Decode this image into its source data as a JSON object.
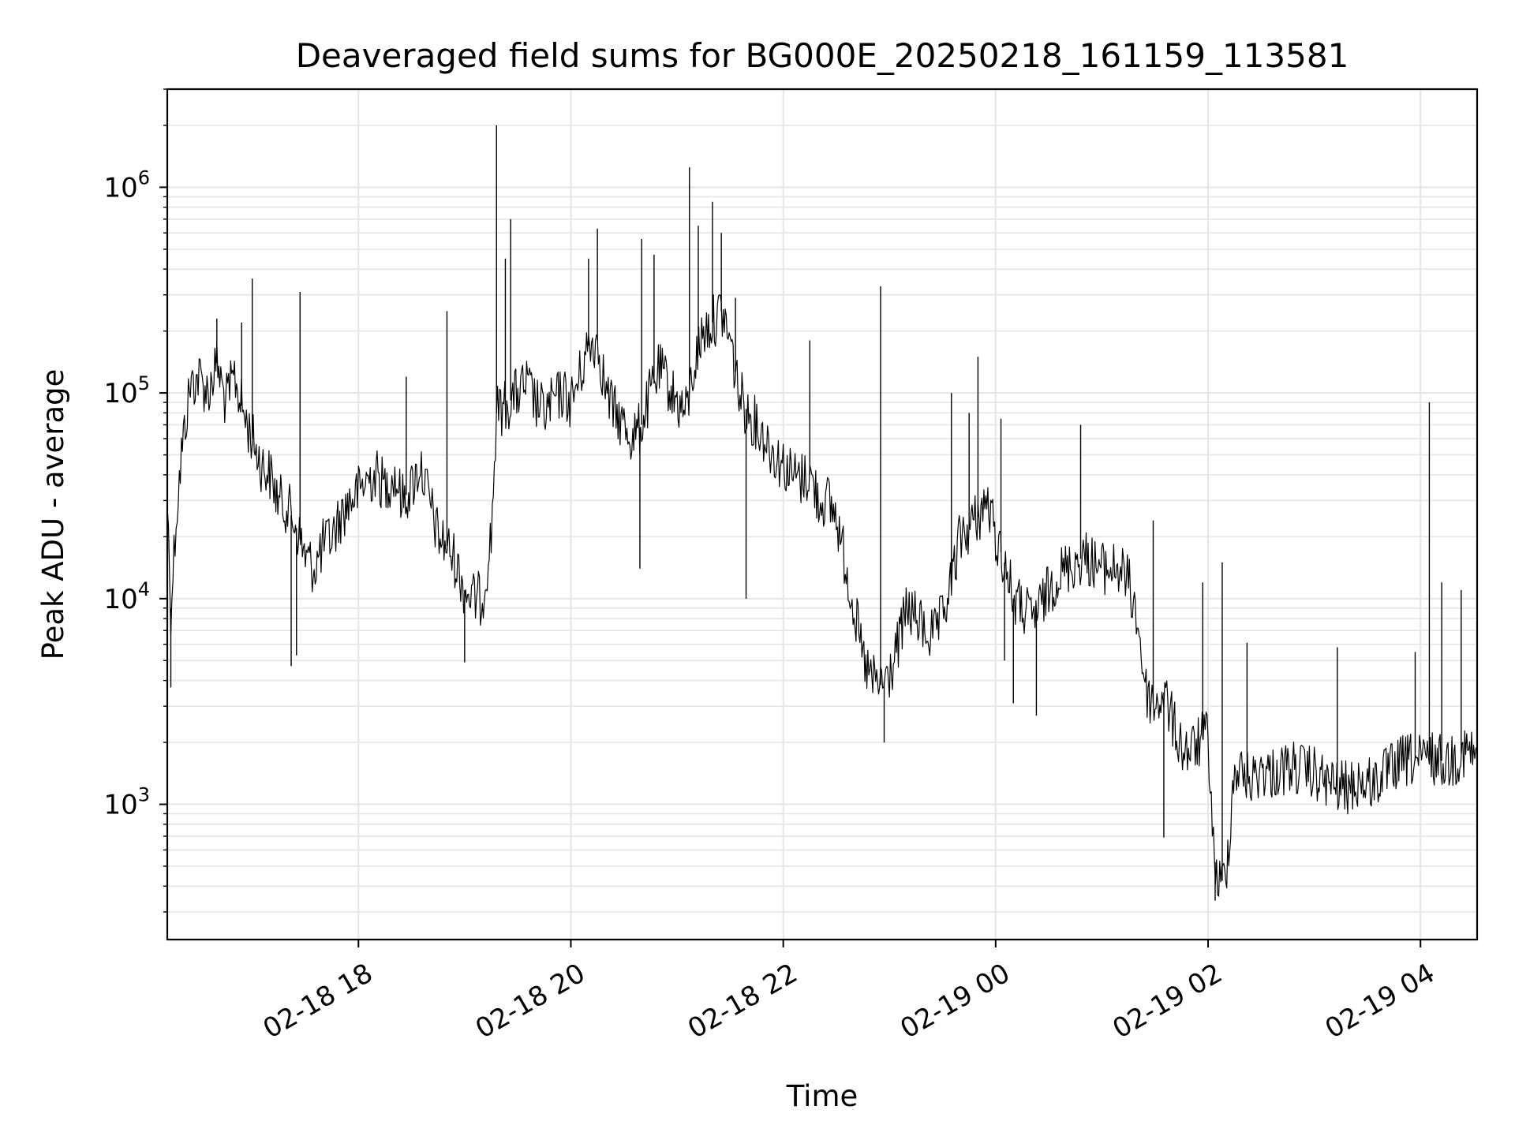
{
  "chart_data": {
    "type": "line",
    "title": "Deaveraged field sums for BG000E_20250218_161159_113581",
    "xlabel": "Time",
    "ylabel": "Peak ADU - average",
    "yscale": "log",
    "ylim": [
      220,
      3000000
    ],
    "xlim": [
      "02-18 16:12",
      "02-19 04:32"
    ],
    "grid": true,
    "grid_color": "#e5e5e5",
    "line_color": "#000000",
    "x_ticks": [
      {
        "t": "02-18 18:00",
        "label": "02-18 18"
      },
      {
        "t": "02-18 20:00",
        "label": "02-18 20"
      },
      {
        "t": "02-18 22:00",
        "label": "02-18 22"
      },
      {
        "t": "02-19 00:00",
        "label": "02-19 00"
      },
      {
        "t": "02-19 02:00",
        "label": "02-19 02"
      },
      {
        "t": "02-19 04:00",
        "label": "02-19 04"
      }
    ],
    "y_ticks": [
      {
        "v": 1000,
        "base": "10",
        "exp": "3"
      },
      {
        "v": 10000,
        "base": "10",
        "exp": "4"
      },
      {
        "v": 100000,
        "base": "10",
        "exp": "5"
      },
      {
        "v": 1000000,
        "base": "10",
        "exp": "6"
      }
    ],
    "series": [
      {
        "points": [
          [
            "02-18 16:12",
            30000
          ],
          [
            "02-18 16:14",
            9000
          ],
          [
            "02-18 16:17",
            25000
          ],
          [
            "02-18 16:20",
            50000
          ],
          [
            "02-18 16:25",
            110000
          ],
          [
            "02-18 16:30",
            120000
          ],
          [
            "02-18 16:35",
            100000
          ],
          [
            "02-18 16:40",
            140000
          ],
          [
            "02-18 16:45",
            90000
          ],
          [
            "02-18 16:50",
            120000
          ],
          [
            "02-18 16:55",
            80000
          ],
          [
            "02-18 17:00",
            60000
          ],
          [
            "02-18 17:05",
            45000
          ],
          [
            "02-18 17:10",
            40000
          ],
          [
            "02-18 17:15",
            30000
          ],
          [
            "02-18 17:20",
            28000
          ],
          [
            "02-18 17:25",
            22000
          ],
          [
            "02-18 17:30",
            16000
          ],
          [
            "02-18 17:35",
            14000
          ],
          [
            "02-18 17:40",
            18000
          ],
          [
            "02-18 17:45",
            20000
          ],
          [
            "02-18 17:50",
            25000
          ],
          [
            "02-18 17:55",
            30000
          ],
          [
            "02-18 18:00",
            33000
          ],
          [
            "02-18 18:05",
            38000
          ],
          [
            "02-18 18:10",
            40000
          ],
          [
            "02-18 18:15",
            35000
          ],
          [
            "02-18 18:20",
            40000
          ],
          [
            "02-18 18:25",
            30000
          ],
          [
            "02-18 18:30",
            35000
          ],
          [
            "02-18 18:35",
            45000
          ],
          [
            "02-18 18:40",
            30000
          ],
          [
            "02-18 18:45",
            20000
          ],
          [
            "02-18 18:50",
            18000
          ],
          [
            "02-18 18:55",
            15000
          ],
          [
            "02-18 19:00",
            11000
          ],
          [
            "02-18 19:05",
            10000
          ],
          [
            "02-18 19:10",
            10000
          ],
          [
            "02-18 19:15",
            20000
          ],
          [
            "02-18 19:18",
            80000
          ],
          [
            "02-18 19:25",
            90000
          ],
          [
            "02-18 19:30",
            100000
          ],
          [
            "02-18 19:35",
            110000
          ],
          [
            "02-18 19:40",
            90000
          ],
          [
            "02-18 19:45",
            80000
          ],
          [
            "02-18 19:50",
            90000
          ],
          [
            "02-18 19:55",
            100000
          ],
          [
            "02-18 20:00",
            90000
          ],
          [
            "02-18 20:05",
            120000
          ],
          [
            "02-18 20:10",
            170000
          ],
          [
            "02-18 20:15",
            180000
          ],
          [
            "02-18 20:20",
            100000
          ],
          [
            "02-18 20:25",
            80000
          ],
          [
            "02-18 20:30",
            70000
          ],
          [
            "02-18 20:35",
            60000
          ],
          [
            "02-18 20:40",
            70000
          ],
          [
            "02-18 20:45",
            100000
          ],
          [
            "02-18 20:50",
            130000
          ],
          [
            "02-18 20:55",
            110000
          ],
          [
            "02-18 21:00",
            90000
          ],
          [
            "02-18 21:05",
            80000
          ],
          [
            "02-18 21:10",
            140000
          ],
          [
            "02-18 21:15",
            200000
          ],
          [
            "02-18 21:20",
            220000
          ],
          [
            "02-18 21:25",
            250000
          ],
          [
            "02-18 21:30",
            180000
          ],
          [
            "02-18 21:35",
            100000
          ],
          [
            "02-18 21:40",
            80000
          ],
          [
            "02-18 21:45",
            70000
          ],
          [
            "02-18 21:50",
            60000
          ],
          [
            "02-18 21:55",
            50000
          ],
          [
            "02-18 22:00",
            45000
          ],
          [
            "02-18 22:05",
            40000
          ],
          [
            "02-18 22:10",
            38000
          ],
          [
            "02-18 22:15",
            40000
          ],
          [
            "02-18 22:20",
            30000
          ],
          [
            "02-18 22:25",
            30000
          ],
          [
            "02-18 22:30",
            25000
          ],
          [
            "02-18 22:35",
            15000
          ],
          [
            "02-18 22:40",
            9000
          ],
          [
            "02-18 22:45",
            5000
          ],
          [
            "02-18 22:50",
            4000
          ],
          [
            "02-18 22:55",
            3800
          ],
          [
            "02-18 23:00",
            4200
          ],
          [
            "02-18 23:05",
            6000
          ],
          [
            "02-18 23:10",
            9000
          ],
          [
            "02-18 23:15",
            8000
          ],
          [
            "02-18 23:20",
            7000
          ],
          [
            "02-18 23:25",
            6500
          ],
          [
            "02-18 23:30",
            8000
          ],
          [
            "02-18 23:35",
            12000
          ],
          [
            "02-18 23:40",
            20000
          ],
          [
            "02-18 23:45",
            22000
          ],
          [
            "02-18 23:50",
            25000
          ],
          [
            "02-18 23:55",
            30000
          ],
          [
            "02-19 00:00",
            20000
          ],
          [
            "02-19 00:05",
            15000
          ],
          [
            "02-19 00:10",
            10000
          ],
          [
            "02-19 00:15",
            9000
          ],
          [
            "02-19 00:20",
            8000
          ],
          [
            "02-19 00:25",
            9000
          ],
          [
            "02-19 00:30",
            11000
          ],
          [
            "02-19 00:35",
            13000
          ],
          [
            "02-19 00:40",
            14000
          ],
          [
            "02-19 00:45",
            15000
          ],
          [
            "02-19 00:50",
            16000
          ],
          [
            "02-19 00:55",
            15000
          ],
          [
            "02-19 01:00",
            14000
          ],
          [
            "02-19 01:05",
            14000
          ],
          [
            "02-19 01:10",
            14000
          ],
          [
            "02-19 01:15",
            12000
          ],
          [
            "02-19 01:20",
            8000
          ],
          [
            "02-19 01:25",
            3500
          ],
          [
            "02-19 01:30",
            3000
          ],
          [
            "02-19 01:35",
            3500
          ],
          [
            "02-19 01:40",
            2500
          ],
          [
            "02-19 01:45",
            1900
          ],
          [
            "02-19 01:50",
            1800
          ],
          [
            "02-19 01:55",
            2000
          ],
          [
            "02-19 02:00",
            2200
          ],
          [
            "02-19 02:03",
            600
          ],
          [
            "02-19 02:06",
            400
          ],
          [
            "02-19 02:10",
            450
          ],
          [
            "02-19 02:15",
            1500
          ],
          [
            "02-19 02:20",
            1400
          ],
          [
            "02-19 02:25",
            1300
          ],
          [
            "02-19 02:30",
            1500
          ],
          [
            "02-19 02:35",
            1400
          ],
          [
            "02-19 02:40",
            1450
          ],
          [
            "02-19 02:45",
            1500
          ],
          [
            "02-19 02:50",
            1500
          ],
          [
            "02-19 02:55",
            1450
          ],
          [
            "02-19 03:00",
            1400
          ],
          [
            "02-19 03:05",
            1300
          ],
          [
            "02-19 03:10",
            1250
          ],
          [
            "02-19 03:15",
            1200
          ],
          [
            "02-19 03:20",
            1200
          ],
          [
            "02-19 03:25",
            1300
          ],
          [
            "02-19 03:30",
            1250
          ],
          [
            "02-19 03:35",
            1300
          ],
          [
            "02-19 03:40",
            1400
          ],
          [
            "02-19 03:45",
            1500
          ],
          [
            "02-19 03:50",
            1600
          ],
          [
            "02-19 03:55",
            1650
          ],
          [
            "02-19 04:00",
            1600
          ],
          [
            "02-19 04:05",
            1700
          ],
          [
            "02-19 04:10",
            1650
          ],
          [
            "02-19 04:15",
            1600
          ],
          [
            "02-19 04:20",
            1700
          ],
          [
            "02-19 04:25",
            1800
          ],
          [
            "02-19 04:30",
            1750
          ],
          [
            "02-19 04:32",
            1800
          ]
        ],
        "spikes": [
          [
            "02-18 16:14",
            3700
          ],
          [
            "02-18 16:40",
            230000
          ],
          [
            "02-18 16:54",
            220000
          ],
          [
            "02-18 17:00",
            360000
          ],
          [
            "02-18 17:27",
            310000
          ],
          [
            "02-18 17:22",
            4700
          ],
          [
            "02-18 17:25",
            5300
          ],
          [
            "02-18 18:27",
            120000
          ],
          [
            "02-18 18:50",
            250000
          ],
          [
            "02-18 19:00",
            4900
          ],
          [
            "02-18 19:18",
            2000000
          ],
          [
            "02-18 19:23",
            450000
          ],
          [
            "02-18 19:26",
            700000
          ],
          [
            "02-18 20:10",
            450000
          ],
          [
            "02-18 20:15",
            630000
          ],
          [
            "02-18 20:39",
            14000
          ],
          [
            "02-18 20:40",
            560000
          ],
          [
            "02-18 20:47",
            470000
          ],
          [
            "02-18 21:07",
            1250000
          ],
          [
            "02-18 21:12",
            650000
          ],
          [
            "02-18 21:20",
            850000
          ],
          [
            "02-18 21:25",
            600000
          ],
          [
            "02-18 21:33",
            290000
          ],
          [
            "02-18 21:39",
            10000
          ],
          [
            "02-18 22:15",
            180000
          ],
          [
            "02-18 22:55",
            330000
          ],
          [
            "02-18 22:57",
            2000
          ],
          [
            "02-18 23:35",
            100000
          ],
          [
            "02-18 23:45",
            80000
          ],
          [
            "02-18 23:50",
            150000
          ],
          [
            "02-19 00:03",
            75000
          ],
          [
            "02-19 00:05",
            5000
          ],
          [
            "02-19 00:10",
            3100
          ],
          [
            "02-19 00:23",
            2700
          ],
          [
            "02-19 00:48",
            70000
          ],
          [
            "02-19 01:29",
            24000
          ],
          [
            "02-19 01:35",
            690
          ],
          [
            "02-19 01:57",
            12000
          ],
          [
            "02-19 02:04",
            340
          ],
          [
            "02-19 02:08",
            15000
          ],
          [
            "02-19 02:22",
            6100
          ],
          [
            "02-19 03:13",
            5800
          ],
          [
            "02-19 03:57",
            5500
          ],
          [
            "02-19 04:05",
            90000
          ],
          [
            "02-19 04:12",
            12000
          ],
          [
            "02-19 04:23",
            11000
          ]
        ]
      }
    ]
  }
}
